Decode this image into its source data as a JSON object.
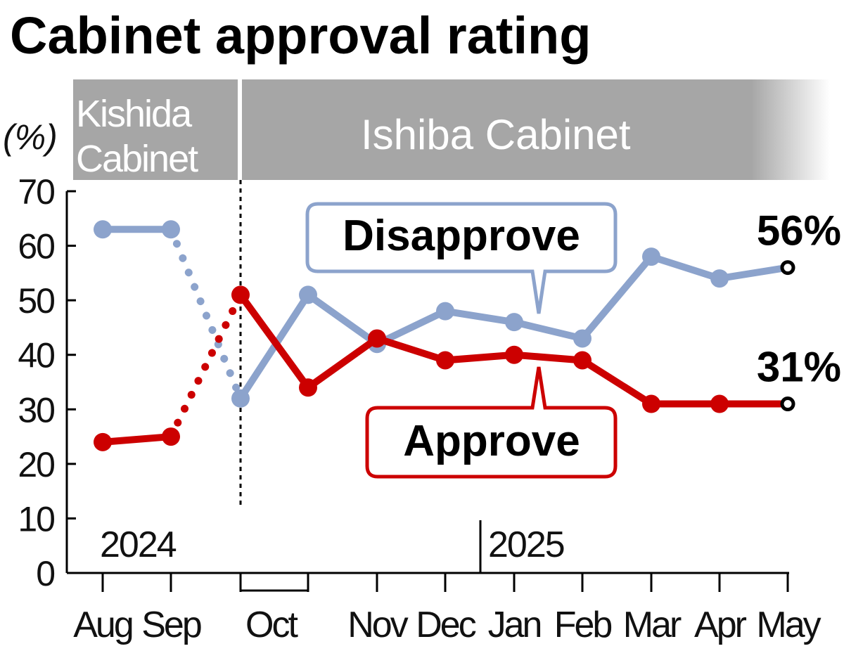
{
  "chart_data": {
    "type": "line",
    "title": "Cabinet approval rating",
    "ylabel": "(%)",
    "ylim": [
      0,
      70
    ],
    "yticks": [
      "0",
      "10",
      "20",
      "30",
      "40",
      "50",
      "60",
      "70"
    ],
    "grid": false,
    "periods": [
      {
        "label_lines": [
          "Kishida",
          "Cabinet"
        ]
      },
      {
        "label_lines": [
          "Ishiba Cabinet"
        ]
      }
    ],
    "years": [
      "2024",
      "2025"
    ],
    "categories": [
      "Aug",
      "Sep",
      "Oct",
      "Nov",
      "Dec",
      "Jan",
      "Feb",
      "Mar",
      "Apr",
      "May"
    ],
    "series": [
      {
        "name": "Disapprove",
        "color": "#8ca3cc",
        "points": [
          {
            "x": "Aug",
            "y": 63
          },
          {
            "x": "Sep",
            "y": 63
          },
          {
            "x": "Oct",
            "y": 32
          },
          {
            "x": "Oct",
            "y": 51
          },
          {
            "x": "Nov",
            "y": 42
          },
          {
            "x": "Dec",
            "y": 48
          },
          {
            "x": "Jan",
            "y": 46
          },
          {
            "x": "Feb",
            "y": 43
          },
          {
            "x": "Mar",
            "y": 58
          },
          {
            "x": "Apr",
            "y": 54
          },
          {
            "x": "May",
            "y": 56
          }
        ],
        "end_label": "56%"
      },
      {
        "name": "Approve",
        "color": "#cc0000",
        "points": [
          {
            "x": "Aug",
            "y": 24
          },
          {
            "x": "Sep",
            "y": 25
          },
          {
            "x": "Oct",
            "y": 51
          },
          {
            "x": "Oct",
            "y": 34
          },
          {
            "x": "Nov",
            "y": 43
          },
          {
            "x": "Dec",
            "y": 39
          },
          {
            "x": "Jan",
            "y": 40
          },
          {
            "x": "Feb",
            "y": 39
          },
          {
            "x": "Mar",
            "y": 31
          },
          {
            "x": "Apr",
            "y": 31
          },
          {
            "x": "May",
            "y": 31
          }
        ],
        "end_label": "31%"
      }
    ],
    "band_color": "#a6a6a6"
  }
}
